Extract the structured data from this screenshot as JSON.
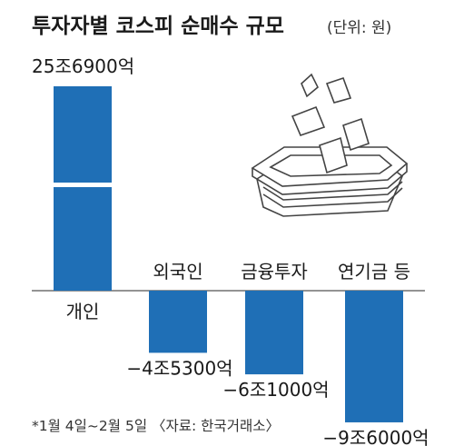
{
  "colors": {
    "bar": "#1f6fb6",
    "line": "#555555",
    "text": "#1a1a1a",
    "paper": "#ffffff",
    "paper_stroke": "#444444"
  },
  "chart_data": {
    "type": "bar",
    "title": "투자자별 코스피 순매수 규모",
    "unit": "(단위: 원)",
    "footnote": "*1월 4일~2월 5일 〈자료: 한국거래소〉",
    "categories": [
      "개인",
      "외국인",
      "금융투자",
      "연기금 등"
    ],
    "values": [
      25.69,
      -4.53,
      -6.1,
      -9.6
    ],
    "value_labels": [
      "25조6900억",
      "−4조5300억",
      "−6조1000억",
      "−9조6000억"
    ],
    "value_units": "조 원",
    "grid": false,
    "legend": "none"
  }
}
